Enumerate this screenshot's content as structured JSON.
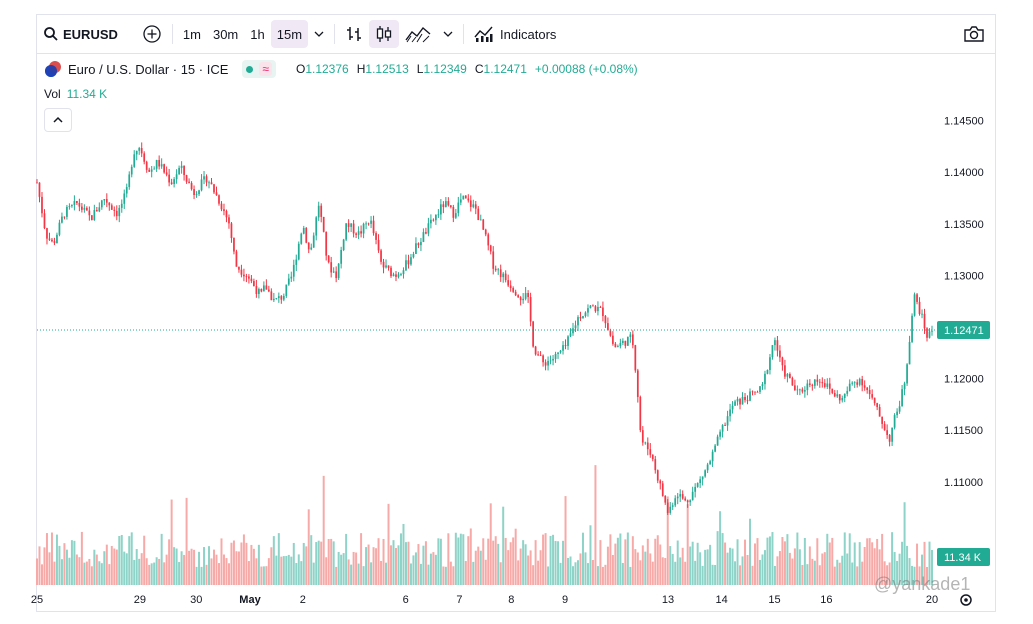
{
  "toolbar": {
    "symbol": "EURUSD",
    "intervals": [
      "1m",
      "30m",
      "1h",
      "15m"
    ],
    "active_interval": "15m",
    "indicators_label": "Indicators",
    "icons": [
      "search-icon",
      "add-compare-icon",
      "chevron-down-icon",
      "bar-style-icon",
      "candle-style-icon",
      "line-style-icon",
      "indicators-icon",
      "camera-icon"
    ]
  },
  "legend": {
    "title": "Euro / U.S. Dollar · 15 · ICE",
    "o_label": "O",
    "o": "1.12376",
    "h_label": "H",
    "h": "1.12513",
    "l_label": "L",
    "l": "1.12349",
    "c_label": "C",
    "c": "1.12471",
    "change": "+0.00088 (+0.08%)"
  },
  "volume_legend": {
    "label": "Vol",
    "value": "11.34 K"
  },
  "watermark": "@yankade1",
  "colors": {
    "up": "#22ab94",
    "down": "#f23645",
    "vol_up": "#8dd3c7",
    "vol_down": "#f7a9a7"
  },
  "chart_data": {
    "type": "candlestick",
    "series_name": "EURUSD",
    "interval": "15",
    "y_ticks": [
      "1.14500",
      "1.14000",
      "1.13500",
      "1.13000",
      "1.12500",
      "1.12000",
      "1.11500",
      "1.11000"
    ],
    "ylim": [
      1.1,
      1.147
    ],
    "last_price": "1.12471",
    "last_volume": "11.34 K",
    "x_labels": [
      {
        "label": "25",
        "pos": 0.0
      },
      {
        "label": "29",
        "pos": 0.115
      },
      {
        "label": "30",
        "pos": 0.178
      },
      {
        "label": "May",
        "pos": 0.238,
        "bold": true
      },
      {
        "label": "2",
        "pos": 0.297
      },
      {
        "label": "6",
        "pos": 0.412
      },
      {
        "label": "7",
        "pos": 0.472
      },
      {
        "label": "8",
        "pos": 0.53
      },
      {
        "label": "9",
        "pos": 0.59
      },
      {
        "label": "13",
        "pos": 0.705
      },
      {
        "label": "14",
        "pos": 0.765
      },
      {
        "label": "15",
        "pos": 0.824
      },
      {
        "label": "16",
        "pos": 0.882
      },
      {
        "label": "20",
        "pos": 1.0
      }
    ],
    "close_path": [
      [
        0.0,
        1.139
      ],
      [
        0.01,
        1.134
      ],
      [
        0.018,
        1.133
      ],
      [
        0.03,
        1.136
      ],
      [
        0.045,
        1.137
      ],
      [
        0.06,
        1.1355
      ],
      [
        0.075,
        1.1375
      ],
      [
        0.09,
        1.136
      ],
      [
        0.1,
        1.138
      ],
      [
        0.108,
        1.142
      ],
      [
        0.115,
        1.1425
      ],
      [
        0.125,
        1.14
      ],
      [
        0.135,
        1.141
      ],
      [
        0.15,
        1.139
      ],
      [
        0.16,
        1.1405
      ],
      [
        0.175,
        1.138
      ],
      [
        0.19,
        1.1395
      ],
      [
        0.205,
        1.137
      ],
      [
        0.215,
        1.135
      ],
      [
        0.222,
        1.131
      ],
      [
        0.235,
        1.13
      ],
      [
        0.25,
        1.128
      ],
      [
        0.255,
        1.129
      ],
      [
        0.265,
        1.1275
      ],
      [
        0.275,
        1.128
      ],
      [
        0.285,
        1.13
      ],
      [
        0.297,
        1.135
      ],
      [
        0.305,
        1.132
      ],
      [
        0.315,
        1.137
      ],
      [
        0.325,
        1.131
      ],
      [
        0.335,
        1.13
      ],
      [
        0.345,
        1.135
      ],
      [
        0.36,
        1.134
      ],
      [
        0.372,
        1.1355
      ],
      [
        0.385,
        1.131
      ],
      [
        0.4,
        1.13
      ],
      [
        0.412,
        1.131
      ],
      [
        0.425,
        1.133
      ],
      [
        0.44,
        1.135
      ],
      [
        0.455,
        1.137
      ],
      [
        0.465,
        1.136
      ],
      [
        0.475,
        1.1375
      ],
      [
        0.49,
        1.1365
      ],
      [
        0.5,
        1.134
      ],
      [
        0.51,
        1.131
      ],
      [
        0.52,
        1.13
      ],
      [
        0.53,
        1.129
      ],
      [
        0.54,
        1.128
      ],
      [
        0.548,
        1.128
      ],
      [
        0.555,
        1.123
      ],
      [
        0.565,
        1.1215
      ],
      [
        0.578,
        1.122
      ],
      [
        0.59,
        1.123
      ],
      [
        0.605,
        1.126
      ],
      [
        0.62,
        1.127
      ],
      [
        0.632,
        1.1265
      ],
      [
        0.645,
        1.123
      ],
      [
        0.655,
        1.1235
      ],
      [
        0.665,
        1.124
      ],
      [
        0.67,
        1.12
      ],
      [
        0.675,
        1.114
      ],
      [
        0.685,
        1.113
      ],
      [
        0.695,
        1.11
      ],
      [
        0.705,
        1.107
      ],
      [
        0.715,
        1.109
      ],
      [
        0.725,
        1.108
      ],
      [
        0.74,
        1.11
      ],
      [
        0.752,
        1.112
      ],
      [
        0.765,
        1.115
      ],
      [
        0.778,
        1.1175
      ],
      [
        0.79,
        1.118
      ],
      [
        0.8,
        1.1185
      ],
      [
        0.81,
        1.119
      ],
      [
        0.824,
        1.124
      ],
      [
        0.832,
        1.121
      ],
      [
        0.84,
        1.12
      ],
      [
        0.85,
        1.1185
      ],
      [
        0.862,
        1.1195
      ],
      [
        0.875,
        1.12
      ],
      [
        0.89,
        1.1185
      ],
      [
        0.9,
        1.118
      ],
      [
        0.91,
        1.1195
      ],
      [
        0.92,
        1.12
      ],
      [
        0.93,
        1.1185
      ],
      [
        0.938,
        1.117
      ],
      [
        0.946,
        1.1155
      ],
      [
        0.952,
        1.114
      ],
      [
        0.958,
        1.116
      ],
      [
        0.965,
        1.118
      ],
      [
        0.97,
        1.12
      ],
      [
        0.975,
        1.124
      ],
      [
        0.98,
        1.128
      ],
      [
        0.985,
        1.127
      ],
      [
        0.99,
        1.1255
      ],
      [
        0.995,
        1.124
      ],
      [
        1.0,
        1.1247
      ]
    ]
  }
}
